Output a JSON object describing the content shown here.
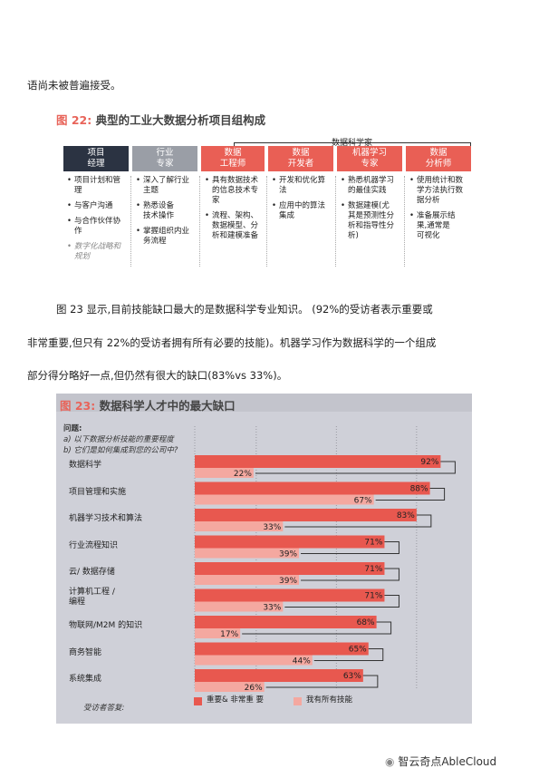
{
  "intro_line": "语尚未被普遍接受。",
  "fig22": {
    "num": "图 22:",
    "title": "典型的工业大数据分析项目组构成",
    "ds_label": "数据科学家",
    "roles": [
      {
        "label": "项目\n经理",
        "style": "dark"
      },
      {
        "label": "行业\n专家",
        "style": "gray"
      },
      {
        "label": "数据\n工程师",
        "style": "red"
      },
      {
        "label": "数据\n开发者",
        "style": "red"
      },
      {
        "label": "机器学习\n专家",
        "style": "red"
      },
      {
        "label": "数据\n分析师",
        "style": "red"
      }
    ],
    "columns": [
      [
        {
          "text": "项目计划和管\n理"
        },
        {
          "text": "与客户沟通"
        },
        {
          "text": "与合作伙伴协\n作"
        },
        {
          "text": "数字化战略和\n规划",
          "muted": true
        }
      ],
      [
        {
          "text": "深入了解行业\n主题"
        },
        {
          "text": "熟悉设备\n技术操作"
        },
        {
          "text": "掌握组织内业\n务流程"
        }
      ],
      [
        {
          "text": "具有数据技术\n的信息技术专\n家"
        },
        {
          "text": "流程、架构、\n数据模型、分\n析和建模准备"
        }
      ],
      [
        {
          "text": "开发和优化算\n法"
        },
        {
          "text": "应用中的算法\n集成"
        }
      ],
      [
        {
          "text": "熟悉机器学习\n的最佳实践"
        },
        {
          "text": "数据建模(尤\n其是预测性分\n析和指导性分\n析)"
        }
      ],
      [
        {
          "text": "使用统计和数\n学方法执行数\n据分析"
        },
        {
          "text": "准备展示结\n果,通常是\n可视化"
        }
      ]
    ]
  },
  "para": [
    "图 23 显示,目前技能缺口最大的是数据科学专业知识。 (92%的受访者表示重要或",
    "非常重要,但只有 22%的受访者拥有所有必要的技能)。机器学习作为数据科学的一个组成",
    "部分得分略好一点,但仍然有很大的缺口(83%vs 33%)。"
  ],
  "fig23": {
    "num": "图 23:",
    "title": "数据科学人才中的最大缺口",
    "question_title": "问题:",
    "question_a": "a) 以下数据分析技能的重要程度",
    "question_b": "b) 它们是如何集成到您的公司中?",
    "source": "受访者答复:",
    "legend_important": "重要& 非常重\n要",
    "legend_have": "我有所有技能",
    "colors": {
      "important": "#e8584f",
      "have": "#f4a8a0"
    }
  },
  "chart_data": {
    "type": "bar",
    "categories": [
      "数据科学",
      "项目管理和实施",
      "机器学习技术和算法",
      "行业流程知识",
      "云/ 数据存储",
      "计算机工程 /\n编程",
      "物联网/M2M 的知识",
      "商务智能",
      "系统集成"
    ],
    "series": [
      {
        "name": "重要& 非常重要",
        "values": [
          92,
          88,
          83,
          71,
          71,
          71,
          68,
          65,
          63
        ]
      },
      {
        "name": "我有所有技能",
        "values": [
          22,
          67,
          33,
          39,
          39,
          33,
          17,
          44,
          26
        ]
      }
    ],
    "value_labels": [
      [
        "92%",
        "88%",
        "83%",
        "71%",
        "71%",
        "71%",
        "68%",
        "65%",
        "63%"
      ],
      [
        "22%",
        "67%",
        "33%",
        "39%",
        "39%",
        "33%",
        "17%",
        "44%",
        "26%"
      ]
    ],
    "xlim": [
      0,
      100
    ],
    "legend": "bottom"
  },
  "watermark": "智云奇点AbleCloud"
}
